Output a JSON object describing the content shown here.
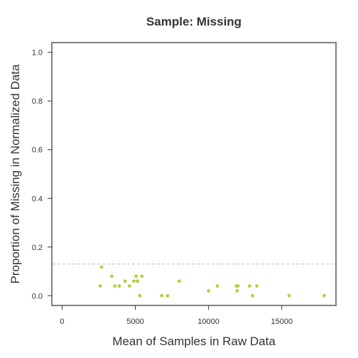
{
  "chart_data": {
    "type": "scatter",
    "title": "Sample: Missing",
    "xlabel": "Mean of Samples in Raw Data",
    "ylabel": "Proportion of Missing in Normalized Data",
    "xlim": [
      -700,
      18700
    ],
    "ylim": [
      -0.04,
      1.04
    ],
    "x_ticks": [
      0,
      5000,
      10000,
      15000
    ],
    "y_ticks": [
      0.0,
      0.2,
      0.4,
      0.6,
      0.8,
      1.0
    ],
    "x_tick_labels": [
      "0",
      "5000",
      "10000",
      "15000"
    ],
    "y_tick_labels": [
      "0.0",
      "0.2",
      "0.4",
      "0.6",
      "0.8",
      "1.0"
    ],
    "grid": false,
    "reference_line": {
      "y": 0.13,
      "style": "dashed",
      "color": "#bbbbbb"
    },
    "point_color": "#b5cf3a",
    "points": [
      {
        "x": 2600,
        "y": 0.04
      },
      {
        "x": 2700,
        "y": 0.118
      },
      {
        "x": 3400,
        "y": 0.08
      },
      {
        "x": 3600,
        "y": 0.04
      },
      {
        "x": 3900,
        "y": 0.04
      },
      {
        "x": 4300,
        "y": 0.06
      },
      {
        "x": 4600,
        "y": 0.04
      },
      {
        "x": 4900,
        "y": 0.06
      },
      {
        "x": 5050,
        "y": 0.08
      },
      {
        "x": 5150,
        "y": 0.06
      },
      {
        "x": 5300,
        "y": 0.0
      },
      {
        "x": 5450,
        "y": 0.08
      },
      {
        "x": 6800,
        "y": 0.0
      },
      {
        "x": 7200,
        "y": 0.0
      },
      {
        "x": 8000,
        "y": 0.06
      },
      {
        "x": 10000,
        "y": 0.02
      },
      {
        "x": 10600,
        "y": 0.04
      },
      {
        "x": 11900,
        "y": 0.04
      },
      {
        "x": 11950,
        "y": 0.02
      },
      {
        "x": 12000,
        "y": 0.04
      },
      {
        "x": 12800,
        "y": 0.04
      },
      {
        "x": 13000,
        "y": 0.0
      },
      {
        "x": 13300,
        "y": 0.04
      },
      {
        "x": 15500,
        "y": 0.0
      },
      {
        "x": 17900,
        "y": 0.0
      }
    ]
  }
}
